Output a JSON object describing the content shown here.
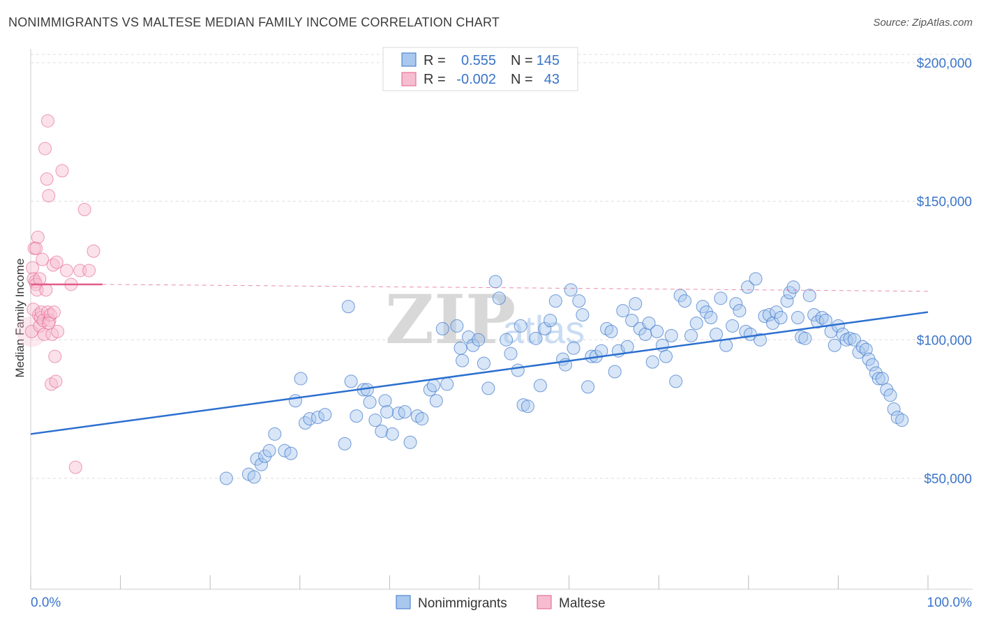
{
  "title": "NONIMMIGRANTS VS MALTESE MEDIAN FAMILY INCOME CORRELATION CHART",
  "source": "Source: ZipAtlas.com",
  "watermark": {
    "zip": "ZIP",
    "atlas": "atlas"
  },
  "colors": {
    "blue": "#3a74c9",
    "blue_fill": "#a9c8ee",
    "blue_line": "#2b6fcf",
    "pink": "#e35b8a",
    "pink_fill": "#f6bdd0",
    "grid": "#dddddd"
  },
  "legend": {
    "rows": [
      {
        "r_label": "R =",
        "r_value": "0.555",
        "n_label": "N =",
        "n_value": "145"
      },
      {
        "r_label": "R =",
        "r_value": "-0.002",
        "n_label": "N =",
        "n_value": "43"
      }
    ]
  },
  "bottom_legend": [
    "Nonimmigrants",
    "Maltese"
  ],
  "chart_data": {
    "type": "scatter",
    "ylabel": "Median Family Income",
    "xlim": [
      0,
      100
    ],
    "ylim": [
      10000,
      205000
    ],
    "x_tick_labels": [
      "0.0%",
      "100.0%"
    ],
    "y_ticks": [
      {
        "value": 50000,
        "label": "$50,000"
      },
      {
        "value": 100000,
        "label": "$100,000"
      },
      {
        "value": 150000,
        "label": "$150,000"
      },
      {
        "value": 200000,
        "label": "$200,000"
      }
    ],
    "grid": true,
    "legend_position": "top-center",
    "series": [
      {
        "name": "Nonimmigrants",
        "trend": {
          "x": [
            0,
            100
          ],
          "y": [
            66000,
            110000
          ],
          "style": "solid"
        },
        "points": [
          [
            21.8,
            50000
          ],
          [
            24.3,
            51500
          ],
          [
            24.9,
            50500
          ],
          [
            25.2,
            57000
          ],
          [
            25.7,
            55000
          ],
          [
            26.1,
            58000
          ],
          [
            26.6,
            60000
          ],
          [
            27.2,
            66000
          ],
          [
            28.3,
            60000
          ],
          [
            29.0,
            59000
          ],
          [
            29.5,
            78000
          ],
          [
            30.1,
            86000
          ],
          [
            30.6,
            70000
          ],
          [
            31.1,
            71500
          ],
          [
            32.0,
            72000
          ],
          [
            32.8,
            73000
          ],
          [
            35.0,
            62500
          ],
          [
            35.7,
            85000
          ],
          [
            36.3,
            72500
          ],
          [
            37.1,
            82000
          ],
          [
            37.5,
            82000
          ],
          [
            37.8,
            77500
          ],
          [
            38.4,
            71000
          ],
          [
            39.1,
            67000
          ],
          [
            39.5,
            78000
          ],
          [
            40.3,
            66000
          ],
          [
            41.0,
            73500
          ],
          [
            41.7,
            74000
          ],
          [
            42.3,
            63000
          ],
          [
            43.1,
            72500
          ],
          [
            43.6,
            71500
          ],
          [
            44.5,
            82000
          ],
          [
            44.9,
            83500
          ],
          [
            45.2,
            78000
          ],
          [
            45.9,
            104000
          ],
          [
            46.4,
            84000
          ],
          [
            47.5,
            105000
          ],
          [
            47.9,
            97000
          ],
          [
            48.8,
            101000
          ],
          [
            49.3,
            98000
          ],
          [
            49.9,
            100000
          ],
          [
            50.5,
            91500
          ],
          [
            51.0,
            82500
          ],
          [
            51.8,
            121000
          ],
          [
            52.2,
            115000
          ],
          [
            53.0,
            100000
          ],
          [
            53.5,
            95000
          ],
          [
            54.3,
            89000
          ],
          [
            54.6,
            105000
          ],
          [
            54.9,
            76500
          ],
          [
            55.4,
            76000
          ],
          [
            56.3,
            100500
          ],
          [
            56.8,
            83500
          ],
          [
            57.3,
            104000
          ],
          [
            57.9,
            107000
          ],
          [
            58.5,
            114000
          ],
          [
            59.3,
            93000
          ],
          [
            59.6,
            91000
          ],
          [
            60.2,
            118000
          ],
          [
            60.5,
            97000
          ],
          [
            61.1,
            114000
          ],
          [
            61.5,
            109000
          ],
          [
            62.1,
            83000
          ],
          [
            62.5,
            94000
          ],
          [
            63.0,
            94000
          ],
          [
            63.6,
            96000
          ],
          [
            64.2,
            104000
          ],
          [
            64.7,
            103000
          ],
          [
            65.1,
            88500
          ],
          [
            65.5,
            96000
          ],
          [
            66.0,
            110500
          ],
          [
            66.5,
            97500
          ],
          [
            67.0,
            107000
          ],
          [
            67.4,
            113000
          ],
          [
            67.9,
            104000
          ],
          [
            68.5,
            102000
          ],
          [
            68.9,
            106000
          ],
          [
            69.3,
            92000
          ],
          [
            69.8,
            103000
          ],
          [
            70.4,
            98000
          ],
          [
            70.8,
            94000
          ],
          [
            71.4,
            101500
          ],
          [
            71.9,
            85000
          ],
          [
            72.4,
            116000
          ],
          [
            72.9,
            114000
          ],
          [
            73.6,
            101500
          ],
          [
            74.2,
            106000
          ],
          [
            74.9,
            112000
          ],
          [
            75.3,
            110000
          ],
          [
            75.8,
            108000
          ],
          [
            76.4,
            102000
          ],
          [
            76.9,
            115000
          ],
          [
            77.5,
            98000
          ],
          [
            78.2,
            105000
          ],
          [
            78.6,
            113000
          ],
          [
            79.0,
            110500
          ],
          [
            79.7,
            103000
          ],
          [
            79.9,
            119000
          ],
          [
            80.2,
            102000
          ],
          [
            80.8,
            122000
          ],
          [
            81.3,
            100000
          ],
          [
            81.8,
            108500
          ],
          [
            82.3,
            109000
          ],
          [
            82.7,
            106000
          ],
          [
            83.1,
            110000
          ],
          [
            83.6,
            108000
          ],
          [
            84.3,
            114000
          ],
          [
            84.6,
            117000
          ],
          [
            85.0,
            119000
          ],
          [
            85.5,
            108000
          ],
          [
            85.9,
            101000
          ],
          [
            86.3,
            100500
          ],
          [
            86.8,
            116000
          ],
          [
            87.3,
            109000
          ],
          [
            87.7,
            106500
          ],
          [
            88.2,
            108000
          ],
          [
            88.6,
            107000
          ],
          [
            89.2,
            103000
          ],
          [
            89.6,
            98000
          ],
          [
            90.0,
            105000
          ],
          [
            90.5,
            102000
          ],
          [
            90.9,
            100000
          ],
          [
            91.3,
            100500
          ],
          [
            91.8,
            100000
          ],
          [
            92.3,
            95500
          ],
          [
            92.7,
            97500
          ],
          [
            93.1,
            96500
          ],
          [
            93.4,
            93000
          ],
          [
            93.8,
            91000
          ],
          [
            94.2,
            88000
          ],
          [
            94.5,
            86000
          ],
          [
            94.9,
            86000
          ],
          [
            95.4,
            82000
          ],
          [
            95.8,
            80000
          ],
          [
            96.2,
            75000
          ],
          [
            96.6,
            72000
          ],
          [
            97.1,
            71000
          ],
          [
            35.4,
            112000
          ],
          [
            39.7,
            74000
          ],
          [
            48.1,
            92500
          ]
        ]
      },
      {
        "name": "Maltese",
        "trend": {
          "x": [
            0,
            8
          ],
          "y": [
            120000,
            120000
          ],
          "dashed_to": [
            100,
            117500
          ],
          "style": "solid-then-dashed"
        },
        "points": [
          [
            0.1,
            103000
          ],
          [
            0.2,
            126000
          ],
          [
            0.3,
            122000
          ],
          [
            0.3,
            111000
          ],
          [
            0.4,
            133000
          ],
          [
            0.5,
            121000
          ],
          [
            0.6,
            120000
          ],
          [
            0.7,
            118000
          ],
          [
            0.8,
            137000
          ],
          [
            0.9,
            109000
          ],
          [
            1.0,
            105000
          ],
          [
            1.1,
            108000
          ],
          [
            1.2,
            110000
          ],
          [
            1.3,
            129000
          ],
          [
            1.4,
            107000
          ],
          [
            1.5,
            102000
          ],
          [
            1.6,
            169000
          ],
          [
            1.7,
            118000
          ],
          [
            1.8,
            158000
          ],
          [
            1.9,
            110000
          ],
          [
            2.0,
            152000
          ],
          [
            2.1,
            107000
          ],
          [
            2.2,
            109000
          ],
          [
            2.3,
            84000
          ],
          [
            2.4,
            102000
          ],
          [
            2.5,
            127000
          ],
          [
            2.6,
            110000
          ],
          [
            2.7,
            94000
          ],
          [
            2.8,
            85000
          ],
          [
            2.9,
            128000
          ],
          [
            3.0,
            103000
          ],
          [
            3.5,
            161000
          ],
          [
            4.0,
            125000
          ],
          [
            4.5,
            120000
          ],
          [
            5.0,
            54000
          ],
          [
            5.5,
            125000
          ],
          [
            6.0,
            147000
          ],
          [
            6.5,
            125000
          ],
          [
            7.0,
            132000
          ],
          [
            1.9,
            179000
          ],
          [
            0.6,
            133000
          ],
          [
            1.0,
            122000
          ],
          [
            2.0,
            106000
          ]
        ]
      }
    ]
  }
}
